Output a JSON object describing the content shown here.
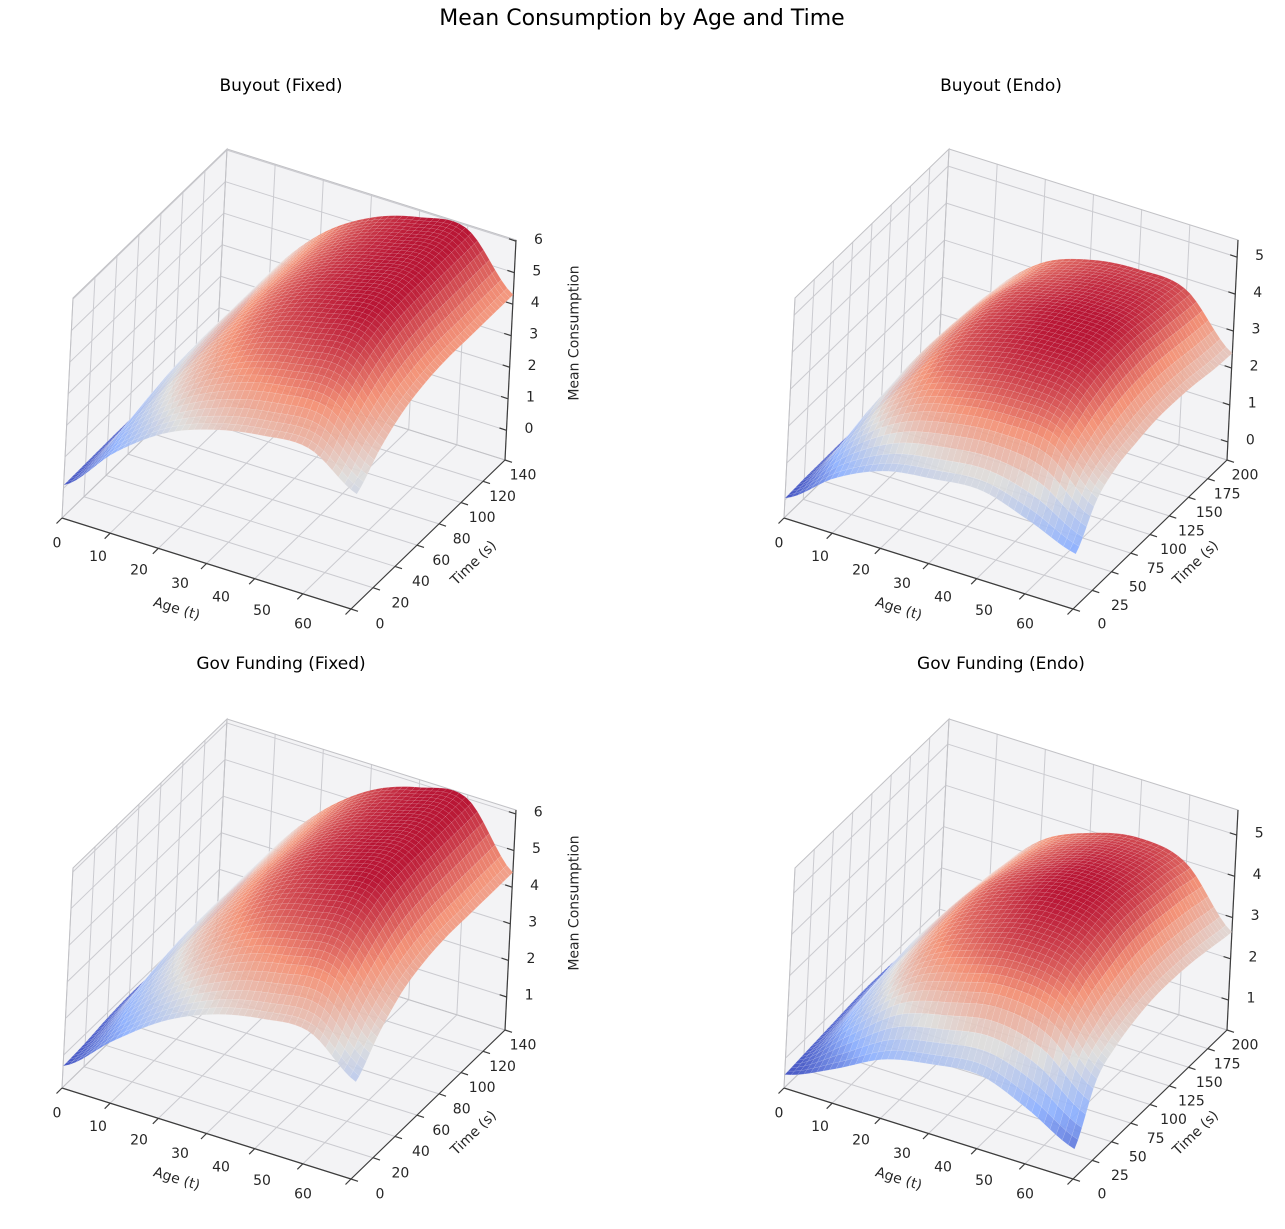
{
  "figure": {
    "title": "Mean Consumption by Age and Time",
    "background": "#ffffff"
  },
  "colors": {
    "pane": "#f3f3f5",
    "grid": "#cbcbd0",
    "wall_edge": "#c2c2c6",
    "axis": "#3d3d3d",
    "text": "#262626",
    "surface_low": "#3b4cc0",
    "surface_mid": "#dddcdb",
    "surface_high": "#b40426"
  },
  "chart_data": [
    {
      "id": "buyout_fixed",
      "type": "surface",
      "title": "Buyout (Fixed)",
      "xlabel": "Age (t)",
      "ylabel": "Time (s)",
      "zlabel": "Mean Consumption",
      "colormap": "coolwarm",
      "x_ticks": [
        0,
        10,
        20,
        30,
        40,
        50,
        60
      ],
      "y_ticks": [
        0,
        20,
        40,
        60,
        80,
        100,
        120,
        140
      ],
      "z_ticks": [
        0,
        1,
        2,
        3,
        4,
        5,
        6
      ],
      "x": [
        0,
        10,
        20,
        30,
        40,
        50,
        60
      ],
      "y": [
        0,
        20,
        40,
        60,
        80,
        100,
        120,
        140
      ],
      "z": [
        [
          0.1,
          0.12,
          0.14,
          0.15,
          0.15,
          0.15,
          0.15,
          0.15
        ],
        [
          1.6,
          2.1,
          2.4,
          2.55,
          2.6,
          2.6,
          2.6,
          2.6
        ],
        [
          2.7,
          3.45,
          3.95,
          4.2,
          4.3,
          4.3,
          4.3,
          4.3
        ],
        [
          3.3,
          4.25,
          4.9,
          5.2,
          5.3,
          5.3,
          5.3,
          5.3
        ],
        [
          3.6,
          4.65,
          5.35,
          5.7,
          5.8,
          5.8,
          5.8,
          5.8
        ],
        [
          3.65,
          4.7,
          5.45,
          5.8,
          5.9,
          5.9,
          5.9,
          5.9
        ],
        [
          2.7,
          3.45,
          3.95,
          4.2,
          4.3,
          4.3,
          4.3,
          4.3
        ]
      ]
    },
    {
      "id": "buyout_endo",
      "type": "surface",
      "title": "Buyout (Endo)",
      "xlabel": "Age (t)",
      "ylabel": "Time (s)",
      "zlabel": "",
      "colormap": "coolwarm",
      "x_ticks": [
        0,
        10,
        20,
        30,
        40,
        50,
        60
      ],
      "y_ticks": [
        0,
        25,
        50,
        75,
        100,
        125,
        150,
        175,
        200
      ],
      "z_ticks": [
        0,
        1,
        2,
        3,
        4,
        5
      ],
      "x": [
        0,
        10,
        20,
        30,
        40,
        50,
        60
      ],
      "y": [
        0,
        25,
        50,
        75,
        100,
        125,
        150,
        175,
        200
      ],
      "z": [
        [
          0.05,
          0.08,
          0.09,
          0.1,
          0.1,
          0.1,
          0.1,
          0.1,
          0.09
        ],
        [
          1.0,
          1.65,
          2.0,
          2.1,
          2.2,
          2.2,
          2.15,
          2.1,
          2.0
        ],
        [
          1.6,
          2.6,
          3.15,
          3.4,
          3.5,
          3.5,
          3.45,
          3.3,
          3.2
        ],
        [
          1.8,
          3.0,
          3.6,
          3.9,
          4.0,
          4.0,
          3.9,
          3.8,
          3.7
        ],
        [
          1.9,
          3.15,
          3.8,
          4.1,
          4.2,
          4.2,
          4.1,
          4.0,
          3.85
        ],
        [
          1.5,
          3.0,
          3.6,
          3.9,
          4.0,
          4.0,
          3.9,
          3.8,
          3.7
        ],
        [
          1.0,
          1.95,
          2.35,
          2.5,
          2.6,
          2.6,
          2.55,
          2.45,
          2.4
        ]
      ]
    },
    {
      "id": "gov_funding_fixed",
      "type": "surface",
      "title": "Gov Funding (Fixed)",
      "xlabel": "Age (t)",
      "ylabel": "Time (s)",
      "zlabel": "Mean Consumption",
      "colormap": "coolwarm",
      "x_ticks": [
        0,
        10,
        20,
        30,
        40,
        50,
        60
      ],
      "y_ticks": [
        0,
        20,
        40,
        60,
        80,
        100,
        120,
        140
      ],
      "z_ticks": [
        1,
        2,
        3,
        4,
        5,
        6
      ],
      "x": [
        0,
        10,
        20,
        30,
        40,
        50,
        60
      ],
      "y": [
        0,
        20,
        40,
        60,
        80,
        100,
        120,
        140
      ],
      "z": [
        [
          0.7,
          0.75,
          0.85,
          0.9,
          0.9,
          0.9,
          0.9,
          0.9
        ],
        [
          1.8,
          2.3,
          2.7,
          2.85,
          2.9,
          2.9,
          2.9,
          2.9
        ],
        [
          2.75,
          3.5,
          4.05,
          4.3,
          4.4,
          4.4,
          4.4,
          4.4
        ],
        [
          3.35,
          4.3,
          5.0,
          5.3,
          5.4,
          5.4,
          5.4,
          5.4
        ],
        [
          3.65,
          4.7,
          5.45,
          5.8,
          5.9,
          5.9,
          5.9,
          5.9
        ],
        [
          3.7,
          4.8,
          5.5,
          5.9,
          6.0,
          6.0,
          6.0,
          6.0
        ],
        [
          2.75,
          3.5,
          4.05,
          4.3,
          4.4,
          4.4,
          4.4,
          4.4
        ]
      ]
    },
    {
      "id": "gov_funding_endo",
      "type": "surface",
      "title": "Gov Funding (Endo)",
      "xlabel": "Age (t)",
      "ylabel": "Time (s)",
      "zlabel": "",
      "colormap": "coolwarm",
      "x_ticks": [
        0,
        10,
        20,
        30,
        40,
        50,
        60
      ],
      "y_ticks": [
        0,
        25,
        50,
        75,
        100,
        125,
        150,
        175,
        200
      ],
      "z_ticks": [
        1,
        2,
        3,
        4,
        5
      ],
      "x": [
        0,
        10,
        20,
        30,
        40,
        50,
        60
      ],
      "y": [
        0,
        25,
        50,
        75,
        100,
        125,
        150,
        175,
        200
      ],
      "z": [
        [
          0.6,
          0.65,
          0.7,
          0.75,
          0.8,
          0.8,
          0.78,
          0.76,
          0.74
        ],
        [
          1.1,
          1.8,
          2.15,
          2.3,
          2.4,
          2.4,
          2.35,
          2.3,
          2.2
        ],
        [
          1.7,
          2.8,
          3.35,
          3.6,
          3.7,
          3.7,
          3.6,
          3.5,
          3.4
        ],
        [
          1.95,
          3.2,
          3.9,
          4.15,
          4.3,
          4.3,
          4.2,
          4.1,
          3.95
        ],
        [
          2.05,
          3.45,
          4.15,
          4.45,
          4.6,
          4.6,
          4.5,
          4.35,
          4.2
        ],
        [
          1.6,
          3.2,
          3.9,
          4.15,
          4.3,
          4.3,
          4.2,
          4.1,
          3.95
        ],
        [
          1.0,
          2.2,
          2.6,
          2.8,
          2.9,
          2.9,
          2.85,
          2.75,
          2.65
        ]
      ]
    }
  ]
}
